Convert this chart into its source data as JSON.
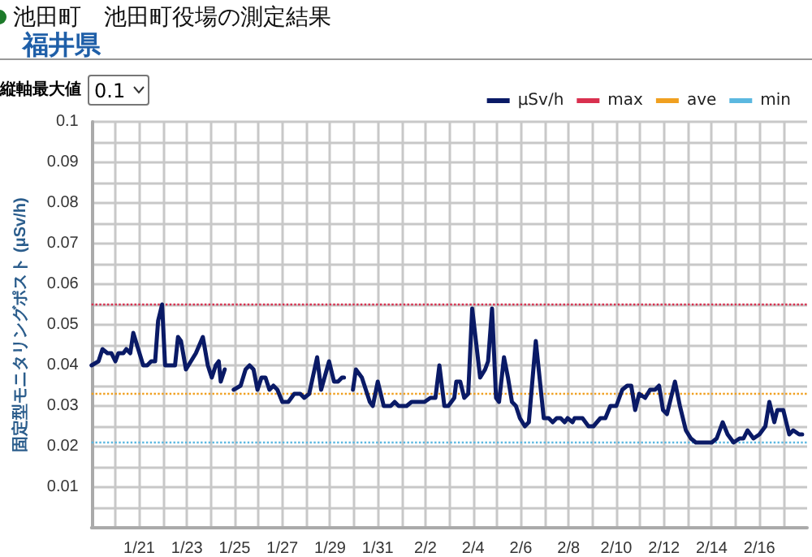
{
  "chart_data": {
    "type": "line",
    "title": "池田町　池田町役場の測定結果",
    "subtitle": "福井県",
    "ylabel": "固定型モニタリングポスト (μSv/h)",
    "annotations": [
      "縦軸最大値",
      "0.1"
    ],
    "xlim": [
      "--01-19",
      "--02-18"
    ],
    "xticks": [
      {
        "value": "--01-20",
        "label": null
      },
      {
        "value": "--01-21",
        "label": "1/21"
      },
      {
        "value": "--01-22",
        "label": null
      },
      {
        "value": "--01-23",
        "label": "1/23"
      },
      {
        "value": "--01-24",
        "label": null
      },
      {
        "value": "--01-25",
        "label": "1/25"
      },
      {
        "value": "--01-26",
        "label": null
      },
      {
        "value": "--01-27",
        "label": "1/27"
      },
      {
        "value": "--01-28",
        "label": null
      },
      {
        "value": "--01-29",
        "label": "1/29"
      },
      {
        "value": "--01-30",
        "label": null
      },
      {
        "value": "--01-31",
        "label": "1/31"
      },
      {
        "value": "--02-01",
        "label": null
      },
      {
        "value": "--02-02",
        "label": "2/2"
      },
      {
        "value": "--02-03",
        "label": null
      },
      {
        "value": "--02-04",
        "label": "2/4"
      },
      {
        "value": "--02-05",
        "label": null
      },
      {
        "value": "--02-06",
        "label": "2/6"
      },
      {
        "value": "--02-07",
        "label": null
      },
      {
        "value": "--02-08",
        "label": "2/8"
      },
      {
        "value": "--02-09",
        "label": null
      },
      {
        "value": "--02-10",
        "label": "2/10"
      },
      {
        "value": "--02-11",
        "label": null
      },
      {
        "value": "--02-12",
        "label": "2/12"
      },
      {
        "value": "--02-13",
        "label": null
      },
      {
        "value": "--02-14",
        "label": "2/14"
      },
      {
        "value": "--02-15",
        "label": null
      },
      {
        "value": "--02-16",
        "label": "2/16"
      },
      {
        "value": "--02-17",
        "label": null
      }
    ],
    "ylim": [
      0,
      0.1
    ],
    "yticks": [
      {
        "value": 0,
        "label": null
      },
      {
        "value": 0.005,
        "label": null
      },
      0.01,
      {
        "value": 0.015,
        "label": null
      },
      0.02,
      {
        "value": 0.025,
        "label": null
      },
      0.03,
      {
        "value": 0.035,
        "label": null
      },
      0.04,
      {
        "value": 0.045,
        "label": null
      },
      0.05,
      {
        "value": 0.055,
        "label": null
      },
      0.06,
      {
        "value": 0.065,
        "label": null
      },
      0.07,
      {
        "value": 0.075,
        "label": null
      },
      0.08,
      {
        "value": 0.085,
        "label": null
      },
      0.09,
      {
        "value": 0.095,
        "label": null
      },
      0.1
    ],
    "grid": true,
    "legend": "top right",
    "marker": "none",
    "line_style": "solid",
    "ref_lines": [
      {
        "axis": "y",
        "value": 0.055,
        "label": "max",
        "color": "#d9304f",
        "line_style": "dotted"
      },
      {
        "axis": "y",
        "value": 0.033,
        "label": "ave",
        "color": "#f0a020",
        "line_style": "dotted"
      },
      {
        "axis": "y",
        "value": 0.021,
        "label": "min",
        "color": "#5bb8e0",
        "line_style": "dotted"
      }
    ],
    "series": [
      {
        "name": "μSv/h",
        "color": "#0a1a66",
        "x": [
          "--01-19T00:00",
          "--01-19T07:00",
          "--01-19T11:00",
          "--01-19T16:00",
          "--01-19T20:00",
          "--01-20T00:00",
          "--01-20T03:00",
          "--01-20T08:00",
          "--01-20T11:00",
          "--01-20T15:00",
          "--01-20T18:00",
          "--01-20T23:00",
          "--01-21T04:00",
          "--01-21T08:00",
          "--01-21T12:00",
          "--01-21T16:00",
          "--01-21T19:00",
          "--01-21T23:00",
          "--01-22T02:00",
          "--01-22T12:00",
          "--01-22T15:00",
          "--01-22T18:00",
          "--01-22T23:00",
          "--01-23T04:00",
          "--01-23T09:00",
          "--01-23T16:00",
          "--01-23T21:00",
          "--01-24T01:00",
          "--01-24T05:00",
          "--01-24T08:00",
          "--01-24T10:00",
          "--01-24T14:00",
          "--01-24T18:00",
          "--01-24T23:00",
          "--01-25T06:00",
          "--01-25T11:00",
          "--01-25T15:00",
          "--01-25T19:00",
          "--01-25T23:00",
          "--01-26T03:00",
          "--01-26T07:00",
          "--01-26T11:00",
          "--01-26T15:00",
          "--01-26T19:00",
          "--01-27T00:00",
          "--01-27T06:00",
          "--01-27T12:00",
          "--01-27T18:00",
          "--01-27T22:00",
          "--01-28T03:00",
          "--01-28T11:00",
          "--01-28T15:00",
          "--01-28T23:00",
          "--01-29T04:00",
          "--01-29T08:00",
          "--01-29T12:00",
          "--01-29T14:00",
          "--01-29T19:00",
          "--01-29T23:00",
          "--01-30T02:00",
          "--01-30T08:00",
          "--01-30T16:00",
          "--01-30T19:00",
          "--01-31T00:00",
          "--01-31T06:00",
          "--01-31T13:00",
          "--01-31T17:00",
          "--01-31T21:00",
          "--02-01T05:00",
          "--02-01T10:00",
          "--02-01T23:00",
          "--02-02T05:00",
          "--02-02T10:00",
          "--02-02T14:00",
          "--02-02T19:00",
          "--02-02T23:00",
          "--02-03T05:00",
          "--02-03T07:00",
          "--02-03T11:00",
          "--02-03T15:00",
          "--02-03T19:00",
          "--02-03T23:00",
          "--02-04T07:00",
          "--02-04T12:00",
          "--02-04T15:00",
          "--02-04T19:00",
          "--02-04T23:00",
          "--02-05T02:00",
          "--02-05T07:00",
          "--02-05T11:00",
          "--02-05T15:00",
          "--02-05T19:00",
          "--02-05T23:00",
          "--02-06T04:00",
          "--02-06T08:00",
          "--02-06T15:00",
          "--02-06T23:00",
          "--02-07T04:00",
          "--02-07T08:00",
          "--02-07T12:00",
          "--02-07T16:00",
          "--02-07T20:00",
          "--02-07T23:00",
          "--02-08T04:00",
          "--02-08T06:00",
          "--02-08T14:00",
          "--02-08T20:00",
          "--02-09T01:00",
          "--02-09T08:00",
          "--02-09T13:00",
          "--02-09T18:00",
          "--02-10T00:00",
          "--02-10T06:00",
          "--02-10T11:00",
          "--02-10T15:00",
          "--02-10T19:00",
          "--02-10T23:00",
          "--02-11T05:00",
          "--02-11T10:00",
          "--02-11T15:00",
          "--02-11T19:00",
          "--02-11T23:00",
          "--02-12T03:00",
          "--02-12T11:00",
          "--02-12T16:00",
          "--02-12T22:00",
          "--02-13T03:00",
          "--02-13T08:00",
          "--02-14T00:00",
          "--02-14T05:00",
          "--02-14T11:00",
          "--02-14T16:00",
          "--02-14T22:00",
          "--02-15T04:00",
          "--02-15T08:00",
          "--02-15T12:00",
          "--02-15T18:00",
          "--02-16T00:00",
          "--02-16T06:00",
          "--02-16T10:00",
          "--02-16T15:00",
          "--02-16T18:00",
          "--02-17T00:00",
          "--02-17T06:00",
          "--02-17T10:00",
          "--02-17T16:00",
          "--02-17T19:00"
        ],
        "values": [
          0.04,
          0.041,
          0.044,
          0.043,
          0.043,
          0.041,
          0.043,
          0.043,
          0.044,
          0.043,
          0.048,
          0.044,
          0.04,
          0.04,
          0.041,
          0.041,
          0.051,
          0.055,
          0.04,
          0.04,
          0.047,
          0.046,
          0.039,
          0.041,
          0.043,
          0.047,
          0.04,
          0.037,
          0.04,
          0.041,
          0.036,
          0.039,
          null,
          0.034,
          0.035,
          0.039,
          0.04,
          0.039,
          0.034,
          0.037,
          0.037,
          0.034,
          0.035,
          0.034,
          0.031,
          0.031,
          0.033,
          0.033,
          0.032,
          0.033,
          0.042,
          0.034,
          0.041,
          0.036,
          0.036,
          0.037,
          0.037,
          null,
          0.034,
          0.039,
          0.037,
          0.031,
          0.03,
          0.036,
          0.03,
          0.03,
          0.031,
          0.03,
          0.03,
          0.031,
          0.031,
          0.032,
          0.032,
          0.04,
          0.03,
          0.03,
          0.032,
          0.036,
          0.036,
          0.032,
          0.033,
          0.054,
          0.037,
          0.039,
          0.041,
          0.054,
          0.032,
          0.031,
          0.042,
          0.037,
          0.031,
          0.03,
          0.027,
          0.025,
          0.026,
          0.046,
          0.027,
          0.027,
          0.026,
          0.027,
          0.027,
          0.026,
          0.027,
          0.026,
          0.027,
          0.027,
          0.025,
          0.025,
          0.027,
          0.027,
          0.03,
          0.03,
          0.034,
          0.035,
          0.035,
          0.029,
          0.033,
          0.032,
          0.034,
          0.034,
          0.035,
          0.029,
          0.028,
          0.036,
          0.03,
          0.024,
          0.022,
          0.021,
          0.021,
          0.022,
          0.026,
          0.023,
          0.021,
          0.022,
          0.022,
          0.024,
          0.022,
          0.023,
          0.025,
          0.031,
          0.026,
          0.029,
          0.029,
          0.023,
          0.024,
          0.023,
          0.023
        ]
      }
    ]
  }
}
